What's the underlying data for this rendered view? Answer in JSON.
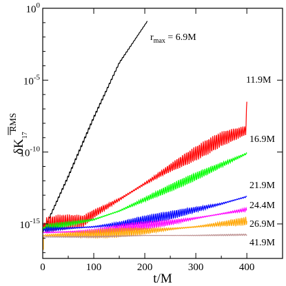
{
  "chart_data": {
    "type": "line",
    "xlabel": "t/M",
    "ylabel": {
      "base": "δK",
      "subscript": "17",
      "superscript": "RMS"
    },
    "xlim": [
      0,
      470
    ],
    "ylim_log10": [
      -17.4,
      0
    ],
    "y_scale": "log",
    "x_ticks": [
      0,
      100,
      200,
      300,
      400
    ],
    "y_ticks": [
      {
        "exp": 0,
        "base": "10",
        "sup": "0"
      },
      {
        "exp": -5,
        "base": "10",
        "sup": "-5"
      },
      {
        "exp": -10,
        "base": "10",
        "sup": "-10"
      },
      {
        "exp": -15,
        "base": "10",
        "sup": "-15"
      }
    ],
    "grid": false,
    "legend": "inline labels",
    "series": [
      {
        "name": "r_max = 6.9M",
        "label_parts": {
          "prefix": "r",
          "sub": "max",
          "suffix": " = 6.9M"
        },
        "color": "#000000",
        "x": [
          0,
          10,
          50,
          100,
          150,
          205
        ],
        "log10_y": [
          -15.6,
          -14.8,
          -11.7,
          -7.6,
          -3.8,
          -0.9
        ],
        "wiggle": 0.1
      },
      {
        "name": "11.9M",
        "color": "#ff0000",
        "x": [
          0,
          30,
          80,
          100,
          150,
          200,
          250,
          300,
          350,
          398,
          400
        ],
        "log10_y": [
          -15.1,
          -14.9,
          -14.8,
          -14.3,
          -13.3,
          -12.2,
          -11.1,
          -10.1,
          -9.1,
          -8.5,
          -6.5
        ],
        "wiggle": 0.55
      },
      {
        "name": "16.9M",
        "color": "#00ff00",
        "x": [
          0,
          50,
          100,
          150,
          200,
          250,
          300,
          350,
          400
        ],
        "log10_y": [
          -15.3,
          -15.0,
          -14.7,
          -14.1,
          -13.3,
          -12.5,
          -11.7,
          -10.9,
          -10.1
        ],
        "wiggle": 0.3
      },
      {
        "name": "21.9M",
        "color": "#0000ff",
        "x": [
          0,
          100,
          150,
          200,
          250,
          300,
          350,
          400
        ],
        "log10_y": [
          -15.4,
          -15.2,
          -15.0,
          -14.7,
          -14.4,
          -14.0,
          -13.6,
          -13.1
        ],
        "wiggle": 0.32
      },
      {
        "name": "24.4M",
        "color": "#ff00ff",
        "x": [
          0,
          100,
          150,
          200,
          250,
          300,
          350,
          400
        ],
        "log10_y": [
          -15.6,
          -15.5,
          -15.3,
          -15.1,
          -14.9,
          -14.6,
          -14.3,
          -14.0
        ],
        "wiggle": 0.3
      },
      {
        "name": "26.9M",
        "color": "#ffa500",
        "x": [
          0,
          100,
          200,
          300,
          400
        ],
        "log10_y": [
          -15.8,
          -15.7,
          -15.5,
          -15.2,
          -14.8
        ],
        "wiggle": 0.35
      },
      {
        "name": "41.9M",
        "color": "#bc8f8f",
        "x": [
          0,
          100,
          200,
          300,
          400
        ],
        "log10_y": [
          -15.9,
          -15.9,
          -15.8,
          -15.8,
          -15.75
        ],
        "wiggle": 0.05
      }
    ]
  }
}
